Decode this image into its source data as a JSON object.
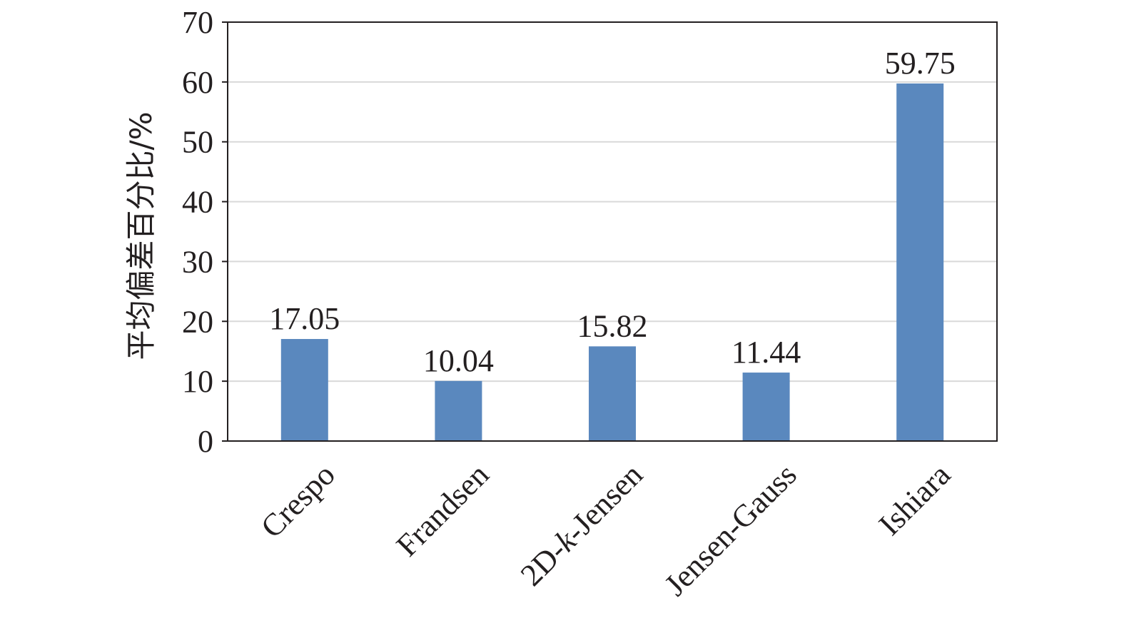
{
  "chart_data": {
    "type": "bar",
    "categories": [
      "Crespo",
      "Frandsen",
      "2D-k-Jensen",
      "Jensen-Gauss",
      "Ishiara"
    ],
    "category_parts": [
      [
        {
          "t": "Crespo",
          "i": false
        }
      ],
      [
        {
          "t": "Frandsen",
          "i": false
        }
      ],
      [
        {
          "t": "2D-",
          "i": false
        },
        {
          "t": "k",
          "i": true
        },
        {
          "t": "-Jensen",
          "i": false
        }
      ],
      [
        {
          "t": "Jensen-Gauss",
          "i": false
        }
      ],
      [
        {
          "t": "Ishiara",
          "i": false
        }
      ]
    ],
    "values": [
      17.05,
      10.04,
      15.82,
      11.44,
      59.75
    ],
    "value_labels": [
      "17.05",
      "10.04",
      "15.82",
      "11.44",
      "59.75"
    ],
    "ylabel": "平均偏差百分比/%",
    "xlabel": "",
    "ylim": [
      0,
      70
    ],
    "yticks": [
      0,
      10,
      20,
      30,
      40,
      50,
      60,
      70
    ],
    "grid": true,
    "bar_color": "#5a88be",
    "grid_color": "#d9d9d9",
    "axis_color": "#231f20"
  }
}
